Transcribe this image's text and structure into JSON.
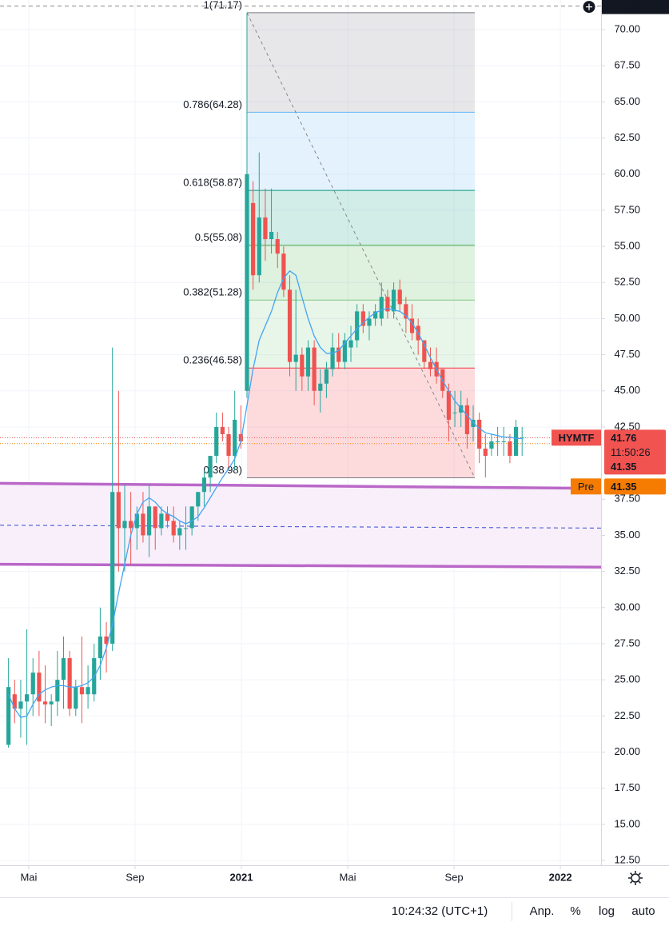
{
  "chart_data": {
    "type": "candlestick",
    "up_color": "#26a69a",
    "down_color": "#ef5350",
    "grid": true,
    "xlim": [
      2.92,
      25.53
    ],
    "xticks": [
      {
        "value": 4,
        "label": "Mai"
      },
      {
        "value": 8,
        "label": "Sep"
      },
      {
        "value": 12,
        "label": "2021"
      },
      {
        "value": 16,
        "label": "Mai"
      },
      {
        "value": 20,
        "label": "Sep"
      },
      {
        "value": 24,
        "label": "2022"
      }
    ],
    "ylim": [
      12.28,
      72.05
    ],
    "yticks": [
      {
        "value": 12.5,
        "label": "12.50"
      },
      {
        "value": 15,
        "label": "15.00"
      },
      {
        "value": 17.5,
        "label": "17.50"
      },
      {
        "value": 20,
        "label": "20.00"
      },
      {
        "value": 22.5,
        "label": "22.50"
      },
      {
        "value": 25,
        "label": "25.00"
      },
      {
        "value": 27.5,
        "label": "27.50"
      },
      {
        "value": 30,
        "label": "30.00"
      },
      {
        "value": 32.5,
        "label": "32.50"
      },
      {
        "value": 35,
        "label": "35.00"
      },
      {
        "value": 37.5,
        "label": "37.50"
      },
      {
        "value": 42.5,
        "label": "42.50"
      },
      {
        "value": 45,
        "label": "45.00"
      },
      {
        "value": 47.5,
        "label": "47.50"
      },
      {
        "value": 50,
        "label": "50.00"
      },
      {
        "value": 52.5,
        "label": "52.50"
      },
      {
        "value": 55,
        "label": "55.00"
      },
      {
        "value": 57.5,
        "label": "57.50"
      },
      {
        "value": 60,
        "label": "60.00"
      },
      {
        "value": 62.5,
        "label": "62.50"
      },
      {
        "value": 65,
        "label": "65.00"
      },
      {
        "value": 67.5,
        "label": "67.50"
      },
      {
        "value": 70,
        "label": "70.00"
      }
    ],
    "x": [
      3.24,
      3.47,
      3.7,
      3.93,
      4.16,
      4.39,
      4.62,
      4.85,
      5.08,
      5.31,
      5.54,
      5.77,
      6.0,
      6.23,
      6.46,
      6.69,
      6.92,
      7.15,
      7.38,
      7.61,
      7.84,
      8.07,
      8.3,
      8.53,
      8.76,
      8.99,
      9.22,
      9.45,
      9.68,
      9.91,
      10.14,
      10.37,
      10.6,
      10.83,
      11.06,
      11.29,
      11.52,
      11.75,
      11.98,
      12.21,
      12.44,
      12.67,
      12.9,
      13.13,
      13.36,
      13.59,
      13.82,
      14.05,
      14.28,
      14.51,
      14.74,
      14.97,
      15.2,
      15.43,
      15.66,
      15.89,
      16.12,
      16.35,
      16.58,
      16.81,
      17.04,
      17.27,
      17.5,
      17.73,
      17.96,
      18.19,
      18.42,
      18.65,
      18.88,
      19.11,
      19.34,
      19.57,
      19.8,
      20.03,
      20.26,
      20.49,
      20.72,
      20.95,
      21.18,
      21.41,
      21.64,
      21.87,
      22.1,
      22.33,
      22.56
    ],
    "ohlc": {
      "open": [
        20.5,
        24,
        23,
        23.5,
        24,
        25.5,
        23.5,
        23.3,
        23.5,
        25,
        26.5,
        23,
        24.5,
        24,
        24,
        26.5,
        28,
        27.5,
        38,
        35.5,
        36,
        35.5,
        36.5,
        35,
        37,
        35.5,
        36.5,
        36,
        35,
        35.5,
        35.5,
        37,
        38,
        39,
        40.5,
        42.5,
        42,
        40.5,
        42,
        45,
        58,
        53,
        57,
        55.5,
        55.5,
        54.5,
        52,
        47,
        47.5,
        46,
        48,
        45,
        45.5,
        46.5,
        48,
        47,
        48,
        48.5,
        50.5,
        49.5,
        50,
        50,
        51.5,
        50.5,
        52,
        51,
        50,
        49.5,
        48.5,
        47,
        47,
        46.5,
        45,
        43.5,
        43.5,
        44,
        42.5,
        43,
        41,
        41,
        41.5,
        41.5,
        41.5,
        40.5,
        41.76
      ],
      "high": [
        26.5,
        25,
        25,
        28.5,
        26.5,
        27,
        26,
        24,
        27,
        28,
        27,
        25,
        28,
        26,
        27.5,
        30,
        29,
        48,
        45,
        38.5,
        38,
        37,
        38,
        38.5,
        37,
        37,
        37,
        37,
        36,
        37,
        37,
        38,
        39.5,
        40.5,
        43.5,
        43.5,
        42.5,
        45,
        44,
        71.17,
        59.5,
        61.5,
        59,
        59,
        56,
        55,
        53,
        52,
        48,
        48.5,
        48.5,
        46.5,
        47,
        49,
        49,
        49,
        49.5,
        51,
        51,
        50.5,
        51,
        52.5,
        52,
        52.5,
        52.7,
        51.5,
        51,
        50,
        48.5,
        48,
        48,
        46.5,
        45.5,
        45,
        45,
        44.5,
        44,
        43.5,
        42,
        42,
        42.5,
        42.5,
        42,
        43,
        42.5
      ],
      "low": [
        20.3,
        22,
        21,
        20.5,
        22.5,
        22.5,
        22,
        21.8,
        22.5,
        23,
        22.5,
        22.5,
        22,
        23,
        23.5,
        25,
        25.5,
        27,
        32.5,
        32.5,
        33,
        34,
        34.5,
        33.5,
        34,
        35,
        35.5,
        34.5,
        34,
        34,
        35,
        36,
        37,
        38,
        40,
        41.5,
        39.5,
        39.5,
        41,
        44.5,
        52,
        52.5,
        54,
        54.5,
        53.5,
        51.5,
        46,
        45,
        45,
        45,
        44,
        43.5,
        44.5,
        46,
        46.5,
        46.5,
        47,
        48,
        49,
        48.5,
        49.5,
        49.5,
        50,
        50,
        50.5,
        49,
        48.5,
        47.5,
        46.5,
        46,
        45.5,
        44.5,
        41.5,
        42.5,
        42.5,
        41,
        41.5,
        40,
        39,
        40.5,
        40.5,
        40.5,
        40,
        40.5,
        40.5
      ],
      "close": [
        24.5,
        23,
        23.5,
        24,
        25.5,
        23.5,
        23.3,
        23.5,
        25,
        26.5,
        23,
        24.5,
        24,
        24.5,
        26.5,
        28,
        27.5,
        38,
        35.5,
        36,
        35.5,
        36.5,
        35,
        37,
        35.5,
        36.5,
        36,
        35,
        35.5,
        35.5,
        37,
        38,
        39,
        40.5,
        42.5,
        42,
        40.5,
        43,
        41.5,
        60,
        53,
        57,
        55.5,
        56,
        54.5,
        52,
        47,
        47.5,
        46,
        48,
        45,
        45.5,
        46.5,
        48,
        47,
        48.5,
        48.5,
        50.5,
        49.5,
        50,
        50.5,
        51.5,
        50.5,
        52,
        51,
        50,
        49,
        48.5,
        47,
        46.5,
        46,
        45,
        43,
        43.5,
        44,
        42,
        43,
        41,
        40.5,
        41.5,
        41.5,
        41.5,
        40.5,
        42.5,
        41.76
      ]
    },
    "ma": {
      "color": "#42a5f5",
      "values": [
        24.0,
        23.0,
        22.4,
        22.5,
        23.3,
        24.0,
        24.3,
        24.5,
        24.6,
        24.6,
        24.5,
        24.5,
        24.6,
        24.8,
        25.2,
        26.0,
        27.2,
        28.8,
        31.0,
        33.0,
        35.0,
        36.5,
        37.3,
        37.6,
        37.3,
        36.8,
        36.5,
        36.3,
        36.0,
        35.8,
        36.0,
        36.3,
        36.9,
        37.6,
        38.3,
        39.0,
        39.6,
        40.3,
        41.5,
        44.0,
        46.5,
        48.5,
        49.5,
        50.5,
        51.8,
        52.8,
        53.3,
        53.0,
        51.5,
        50.0,
        48.8,
        48.0,
        47.6,
        47.6,
        47.8,
        48.3,
        48.8,
        49.3,
        49.7,
        50.1,
        50.4,
        50.6,
        50.7,
        50.6,
        50.5,
        50.2,
        49.7,
        49.0,
        48.2,
        47.3,
        46.5,
        45.7,
        45.0,
        44.3,
        43.8,
        43.3,
        42.8,
        42.4,
        42.1,
        42.0,
        41.9,
        41.8,
        41.8,
        41.7,
        41.7
      ]
    },
    "fib": {
      "x": [
        12.21,
        20.78
      ],
      "trend_color": "#888888",
      "levels": [
        {
          "label": "1(71.17)",
          "value": 71.17,
          "color": "#787b86"
        },
        {
          "label": "0.786(64.28)",
          "value": 64.28,
          "color": "#64b5f6"
        },
        {
          "label": "0.618(58.87)",
          "value": 58.87,
          "color": "#089981"
        },
        {
          "label": "0.5(55.08)",
          "value": 55.08,
          "color": "#4caf50"
        },
        {
          "label": "0.382(51.28)",
          "value": 51.28,
          "color": "#81c784"
        },
        {
          "label": "0.236(46.58)",
          "value": 46.58,
          "color": "#f23645"
        },
        {
          "label": "0(38.98)",
          "value": 38.98,
          "color": "#787b86"
        }
      ]
    },
    "zone": {
      "color": "#ba68c8",
      "fill": "#f8effa",
      "mid_color": "#5567d9",
      "top": [
        38.6,
        38.25
      ],
      "mid": [
        35.7,
        35.5
      ],
      "bottom": [
        33.0,
        32.8
      ]
    },
    "crosshair_price": 71.63,
    "last_price": {
      "symbol": "HYMTF",
      "price": 41.76,
      "countdown": "11:50:26",
      "close": 41.35,
      "color": "#f05350"
    },
    "pre_market": {
      "label": "Pre",
      "price": 41.35,
      "color": "#f57c00"
    }
  },
  "toolbar": {
    "time": "10:24:32 (UTC+1)",
    "buttons": [
      "Anp.",
      "%",
      "log",
      "auto"
    ]
  }
}
